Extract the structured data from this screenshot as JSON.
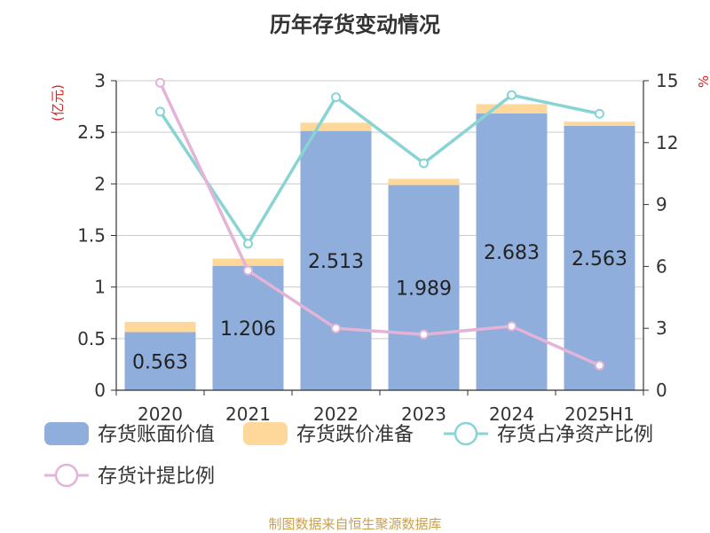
{
  "chart_data": {
    "type": "bar",
    "title": "历年存货变动情况",
    "categories": [
      "2020",
      "2021",
      "2022",
      "2023",
      "2024",
      "2025H1"
    ],
    "y_left_unit": "(亿元)",
    "y_right_unit": "%",
    "y_left_ticks": [
      "0",
      "0.5",
      "1",
      "1.5",
      "2",
      "2.5",
      "3"
    ],
    "y_right_ticks": [
      "0",
      "3",
      "6",
      "9",
      "12",
      "15"
    ],
    "ylim_left": [
      0,
      3
    ],
    "ylim_right": [
      0,
      15
    ],
    "stack_series": [
      {
        "name": "存货账面价值",
        "color": "#8faedb",
        "axis": "left",
        "values": [
          0.563,
          1.206,
          2.513,
          1.989,
          2.683,
          2.563
        ],
        "labels": [
          "0.563",
          "1.206",
          "2.513",
          "1.989",
          "2.683",
          "2.563"
        ]
      },
      {
        "name": "存货跌价准备",
        "color": "#fdd89a",
        "axis": "left",
        "values": [
          0.1,
          0.07,
          0.08,
          0.06,
          0.09,
          0.04
        ]
      }
    ],
    "line_series": [
      {
        "name": "存货占净资产比例",
        "color": "#88d4d4",
        "axis": "right",
        "values": [
          13.5,
          7.1,
          14.2,
          11.0,
          14.3,
          13.4
        ]
      },
      {
        "name": "存货计提比例",
        "color": "#e4b3d8",
        "axis": "right",
        "values": [
          14.9,
          5.8,
          3.0,
          2.7,
          3.1,
          1.2
        ]
      }
    ],
    "grid": true,
    "legend_position": "bottom"
  },
  "source_note": "制图数据来自恒生聚源数据库"
}
